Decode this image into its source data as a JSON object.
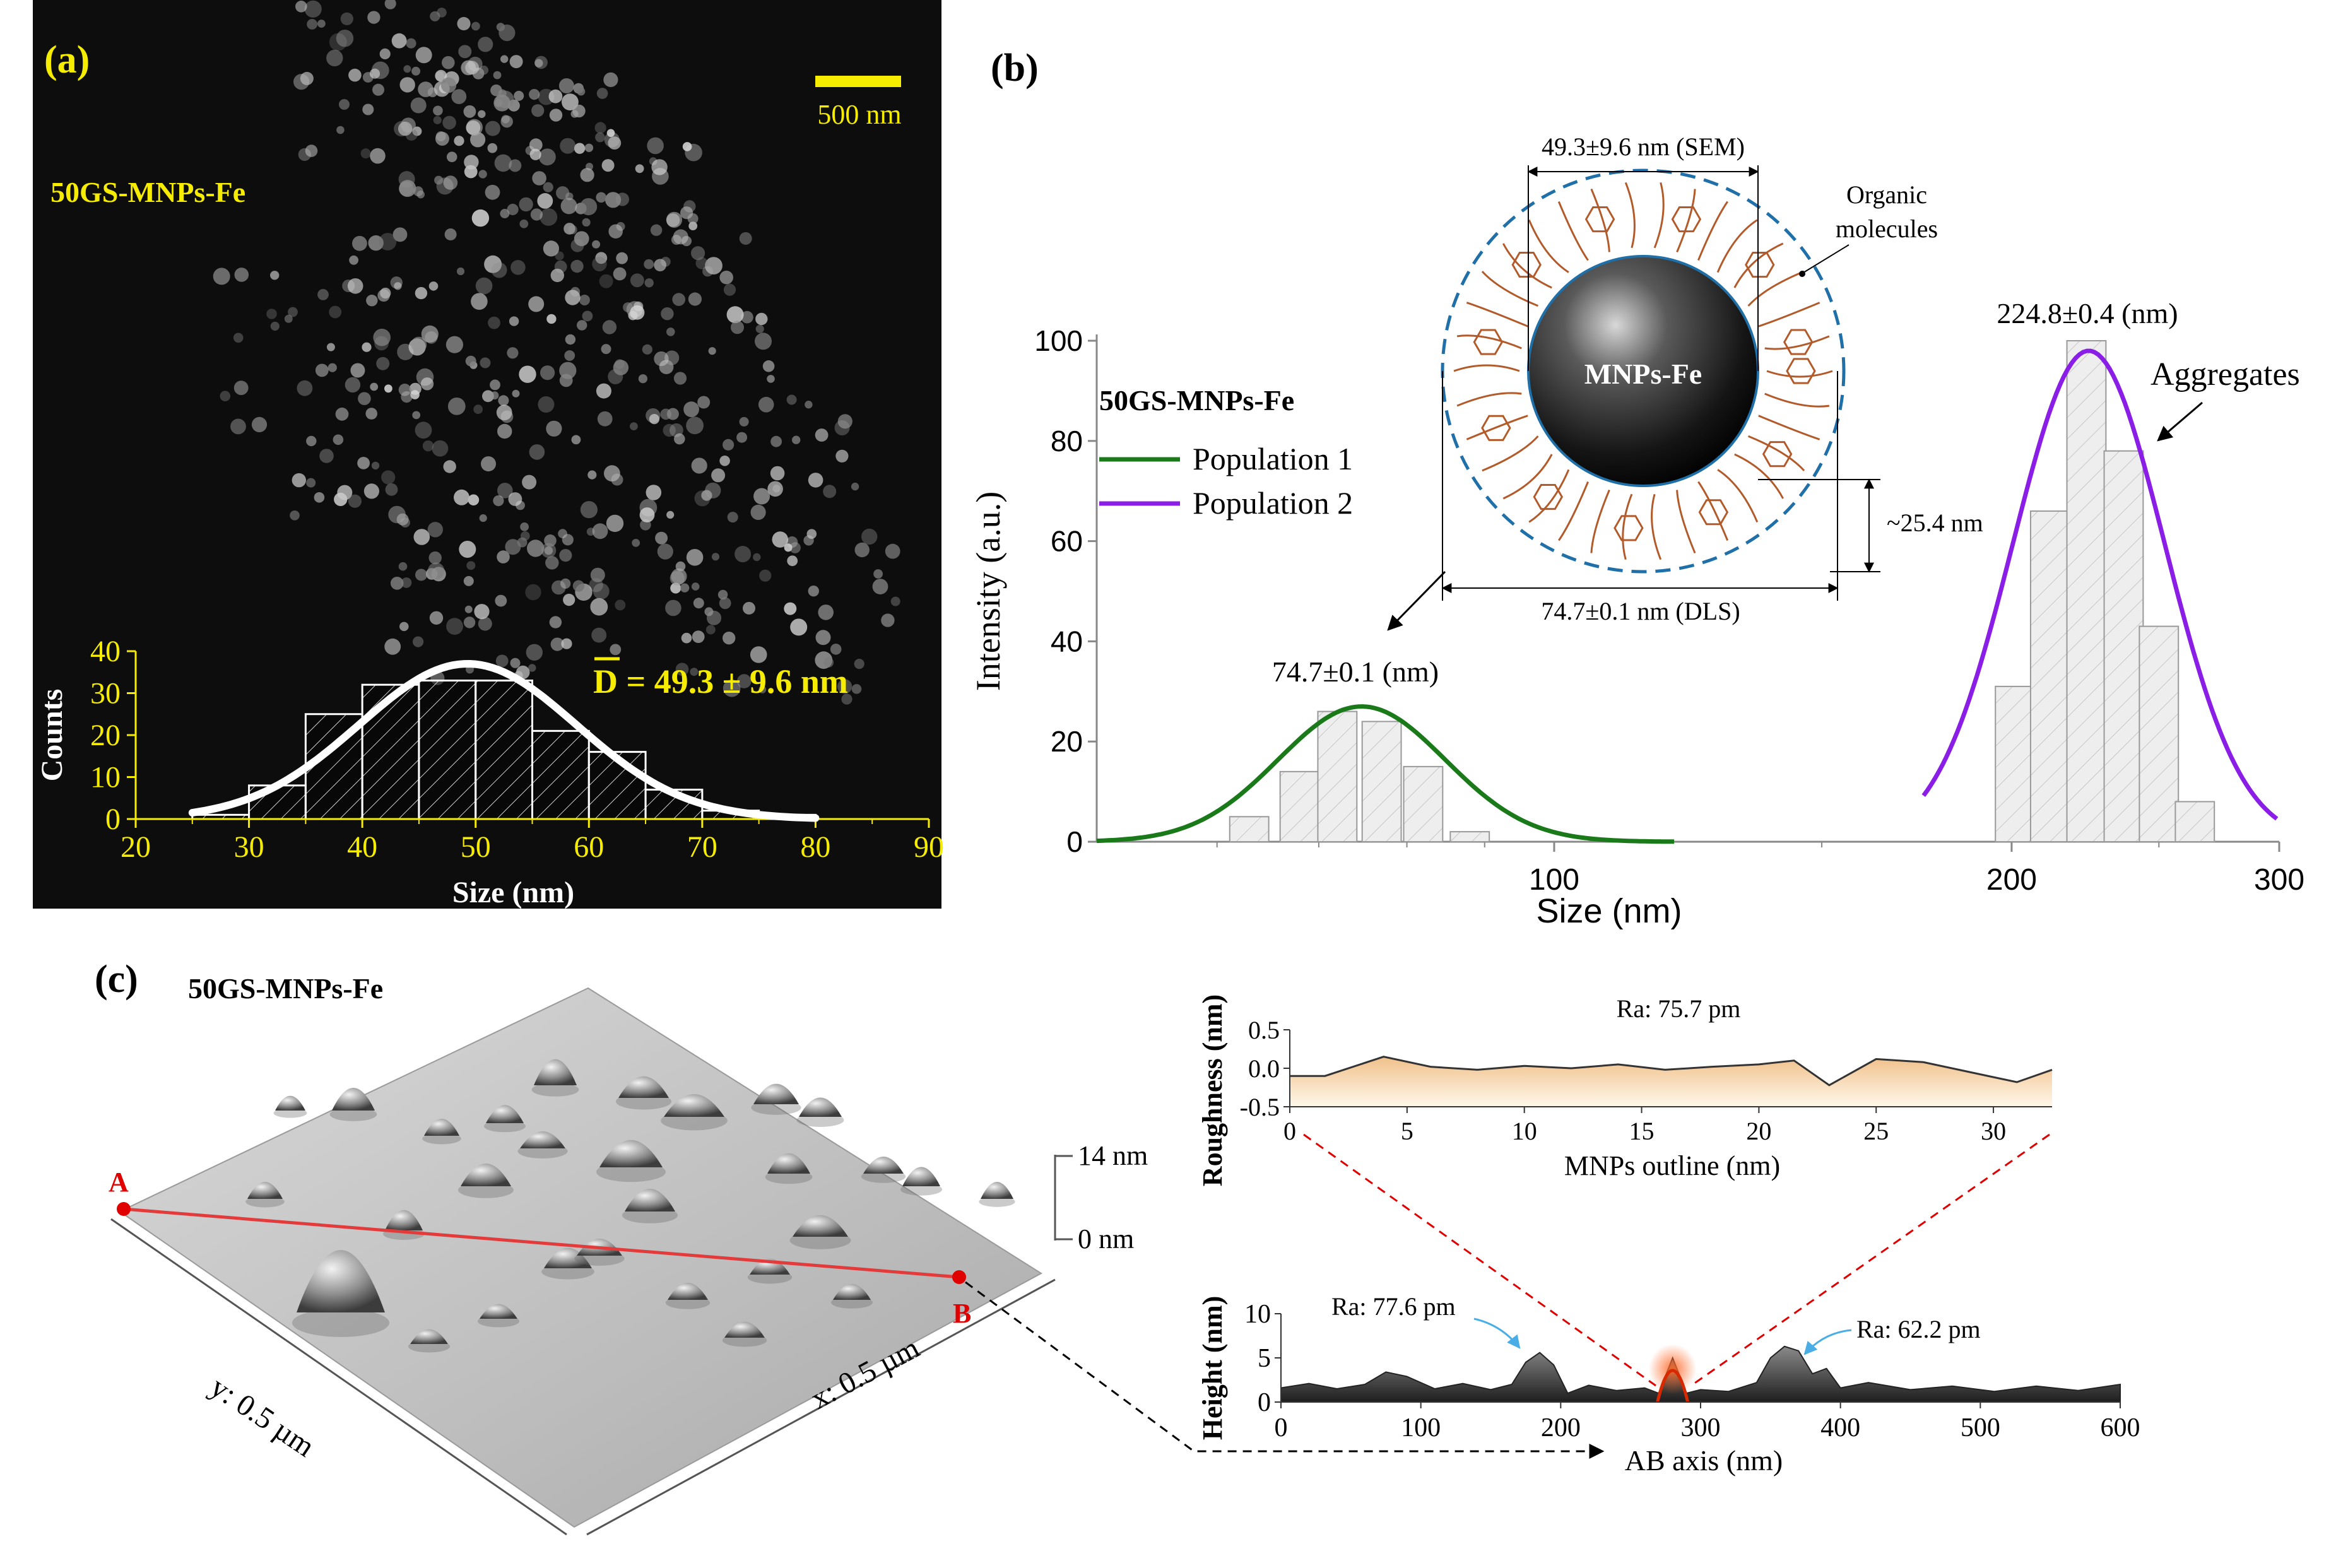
{
  "colors": {
    "sem_bg": "#0d0d0d",
    "sem_label": "#f5ec00",
    "pop1": "#1a7a1a",
    "pop2": "#8a1ee6",
    "hist_fill": "#e9e9e9",
    "shell": "#1f6fa8",
    "molecule": "#b35a2a",
    "ab_line": "#e33b3b",
    "marker": "#e00000",
    "rough_fill_top": "#f3c998",
    "rough_fill_bottom": "#fff6e6",
    "height_fill": "#6b6b6b",
    "annot_arrow": "#4aaee6"
  },
  "panel_a": {
    "label": "(a)",
    "sample": "50GS-MNPs-Fe",
    "scale_bar": "500 nm",
    "mean_text": "D = 49.3 ± 9.6 nm",
    "chart_data": {
      "type": "bar",
      "title": "",
      "xlabel": "Size (nm)",
      "ylabel": "Counts",
      "xlim": [
        20,
        90
      ],
      "ylim": [
        0,
        40
      ],
      "xticks": [
        "20",
        "30",
        "40",
        "50",
        "60",
        "70",
        "80",
        "90"
      ],
      "yticks": [
        "0",
        "10",
        "20",
        "30",
        "40"
      ],
      "bins": [
        {
          "from": 25,
          "to": 30,
          "count": 1
        },
        {
          "from": 30,
          "to": 35,
          "count": 8
        },
        {
          "from": 35,
          "to": 40,
          "count": 25
        },
        {
          "from": 40,
          "to": 45,
          "count": 32
        },
        {
          "from": 45,
          "to": 50,
          "count": 33
        },
        {
          "from": 50,
          "to": 55,
          "count": 33
        },
        {
          "from": 55,
          "to": 60,
          "count": 21
        },
        {
          "from": 60,
          "to": 65,
          "count": 16
        },
        {
          "from": 65,
          "to": 70,
          "count": 7
        },
        {
          "from": 70,
          "to": 75,
          "count": 2
        },
        {
          "from": 75,
          "to": 80,
          "count": 1
        }
      ],
      "fit": {
        "type": "gaussian",
        "mean": 49.3,
        "sd": 9.6,
        "peak": 37
      }
    }
  },
  "panel_b": {
    "label": "(b)",
    "sample": "50GS-MNPs-Fe",
    "legend": [
      "Population 1",
      "Population 2"
    ],
    "peak1_label": "74.7±0.1 (nm)",
    "peak2_label": "224.8±0.4 (nm)",
    "aggregates": "Aggregates",
    "schematic": {
      "sem": "49.3±9.6 nm (SEM)",
      "organic": [
        "Organic",
        "molecules"
      ],
      "core": "MNPs-Fe",
      "shell": "~25.4 nm",
      "dls": "74.7±0.1 nm (DLS)"
    },
    "chart_data": {
      "type": "bar",
      "title": "",
      "xlabel": "Size (nm)",
      "ylabel": "Intensity (a.u.)",
      "x_scale": "log",
      "xlim": [
        50,
        300
      ],
      "ylim": [
        0,
        100
      ],
      "xticks": [
        "100",
        "200",
        "300"
      ],
      "yticks": [
        "0",
        "20",
        "40",
        "60",
        "80",
        "100"
      ],
      "series": [
        {
          "name": "Population 1",
          "bars": [
            {
              "x": 63,
              "y": 5
            },
            {
              "x": 68,
              "y": 14
            },
            {
              "x": 72,
              "y": 26
            },
            {
              "x": 77,
              "y": 24
            },
            {
              "x": 82,
              "y": 15
            },
            {
              "x": 88,
              "y": 2
            }
          ],
          "fit": {
            "type": "gaussian",
            "center": 74.7,
            "peak": 27
          }
        },
        {
          "name": "Population 2",
          "bars": [
            {
              "x": 201,
              "y": 31
            },
            {
              "x": 212,
              "y": 66
            },
            {
              "x": 224,
              "y": 100
            },
            {
              "x": 237,
              "y": 78
            },
            {
              "x": 250,
              "y": 43
            },
            {
              "x": 264,
              "y": 8
            }
          ],
          "fit": {
            "type": "gaussian",
            "center": 224.8,
            "peak": 98
          }
        }
      ]
    }
  },
  "panel_c": {
    "label": "(c)",
    "sample": "50GS-MNPs-Fe",
    "point_a": "A",
    "point_b": "B",
    "z_top": "14 nm",
    "z_bottom": "0 nm",
    "y_axis": "y: 0.5 µm",
    "x_axis": "x: 0.5 µm",
    "roughness_chart": {
      "type": "area",
      "xlabel": "MNPs outline (nm)",
      "ylabel": "Roughness (nm)",
      "xlim": [
        0,
        32.5
      ],
      "ylim": [
        -0.5,
        0.5
      ],
      "xticks": [
        "0",
        "5",
        "10",
        "15",
        "20",
        "25",
        "30"
      ],
      "yticks": [
        "0.5",
        "0.0",
        "-0.5"
      ],
      "ra_label": "Ra: 75.7 pm",
      "x": [
        0,
        1.5,
        4,
        6,
        8,
        10,
        12,
        14,
        16,
        18,
        20,
        21.5,
        23,
        25,
        27,
        29,
        31,
        32.5
      ],
      "y": [
        -0.1,
        -0.1,
        0.15,
        0.02,
        -0.02,
        0.03,
        0.0,
        0.05,
        -0.02,
        0.02,
        0.05,
        0.1,
        -0.22,
        0.12,
        0.08,
        -0.05,
        -0.18,
        -0.02
      ]
    },
    "height_chart": {
      "type": "area",
      "xlabel": "AB axis (nm)",
      "ylabel": "Height (nm)",
      "xlim": [
        0,
        600
      ],
      "ylim": [
        0,
        10
      ],
      "xticks": [
        "0",
        "100",
        "200",
        "300",
        "400",
        "500",
        "600"
      ],
      "yticks": [
        "10",
        "5",
        "0"
      ],
      "ra_left": "Ra: 77.6 pm",
      "ra_right": "Ra: 62.2 pm",
      "x": [
        0,
        20,
        40,
        60,
        75,
        90,
        110,
        130,
        150,
        165,
        175,
        185,
        195,
        205,
        220,
        240,
        260,
        270,
        280,
        290,
        300,
        320,
        340,
        350,
        360,
        370,
        380,
        390,
        400,
        420,
        450,
        480,
        510,
        540,
        570,
        600
      ],
      "y": [
        1.6,
        2.1,
        1.5,
        2.0,
        3.4,
        2.9,
        1.5,
        2.1,
        1.4,
        2.0,
        4.5,
        5.6,
        4.2,
        1.0,
        1.9,
        1.3,
        1.6,
        1.0,
        5.0,
        1.0,
        1.4,
        1.2,
        2.2,
        5.0,
        6.3,
        5.8,
        3.2,
        3.8,
        1.6,
        2.2,
        1.4,
        1.8,
        1.2,
        1.8,
        1.3,
        2.0
      ]
    }
  }
}
